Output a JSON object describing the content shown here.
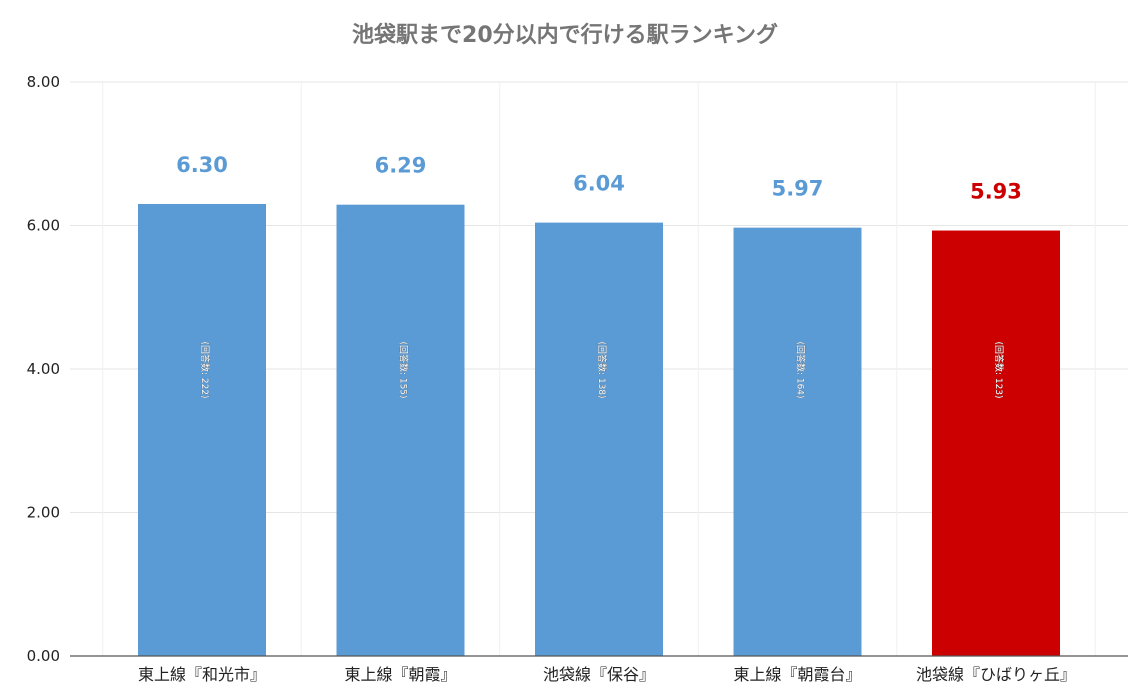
{
  "chart_data": {
    "type": "bar",
    "title": "池袋駅まで20分以内で行ける駅ランキング",
    "categories": [
      "東上線『和光市』",
      "東上線『朝霞』",
      "池袋線『保谷』",
      "東上線『朝霞台』",
      "池袋線『ひばりヶ丘』"
    ],
    "values": [
      6.3,
      6.29,
      6.04,
      5.97,
      5.93
    ],
    "value_labels": [
      "6.30",
      "6.29",
      "6.04",
      "5.97",
      "5.93"
    ],
    "bar_inner_labels": [
      "(回答数: 222)",
      "(回答数: 155)",
      "(回答数: 138)",
      "(回答数: 164)",
      "(回答数: 123)"
    ],
    "y_ticks": [
      "0.00",
      "2.00",
      "4.00",
      "6.00",
      "8.00"
    ],
    "ylim": [
      0,
      8
    ],
    "grid": true,
    "colors": {
      "default_bar": "#5b9bd5",
      "highlight_bar": "#cc0000",
      "default_label": "#5b9bd5",
      "highlight_label": "#cc0000"
    },
    "highlight_index": 4
  }
}
